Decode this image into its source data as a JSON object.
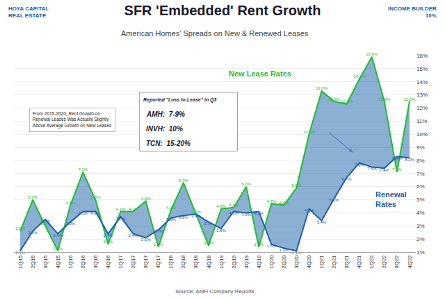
{
  "chart_data": {
    "type": "line",
    "title": "SFR 'Embedded' Rent Growth",
    "subtitle": "American Homes' Spreads on New & Renewed Leases",
    "annotations": [
      "HOYA CAPITAL\nREAL ESTATE",
      "INCOME BUILDER\n10%",
      "Source: AMH Company Reports",
      "From 2015-2020, Rent Growth on\nRenewal Leases Was Actually Slightly\nAbove Average Growth on New Leases",
      "Reported \"Loss to Lease\" in Q3",
      "AMH:  7-9%",
      "INVH:  10%",
      "TCN:  15-20%"
    ],
    "categories": [
      "1Q15",
      "2Q15",
      "3Q15",
      "4Q15",
      "1Q16",
      "2Q16",
      "3Q16",
      "4Q16",
      "1Q17",
      "2Q17",
      "3Q17",
      "4Q17",
      "1Q18",
      "2Q18",
      "3Q18",
      "4Q18",
      "1Q19",
      "2Q19",
      "3Q19",
      "4Q19",
      "1Q20",
      "2Q20",
      "3Q20",
      "4Q20",
      "1Q21",
      "2Q21",
      "3Q21",
      "4Q21",
      "1Q22",
      "2Q22",
      "3Q22",
      "4Q22"
    ],
    "series": [
      {
        "name": "New Lease Rates",
        "color": "#22bb33",
        "values": [
          2.6,
          5.0,
          3.0,
          1.1,
          4.6,
          7.1,
          5.0,
          1.6,
          4.1,
          4.1,
          4.9,
          1.4,
          4.2,
          6.3,
          3.9,
          1.5,
          4.3,
          4.4,
          6.0,
          1.4,
          4.7,
          4.6,
          5.9,
          10.0,
          13.3,
          12.5,
          12.3,
          14.2,
          15.9,
          12.5,
          7.1,
          12.5
        ],
        "value_labels": [
          "2.6%",
          "5.0%",
          "3.0%",
          "1.1%",
          "4.6%",
          "7.1%",
          "5.0%",
          "1.6%",
          "4.1%",
          "4.1%",
          "4.9%",
          "1.4%",
          "4.2%",
          "6.3%",
          "3.9%",
          "1.5%",
          "4.3%",
          "4.4%",
          "6.0%",
          "1.4%",
          "4.7%",
          "4.6%",
          "5.9%",
          "10.0%",
          "13.3%",
          "12.5%",
          "12.3%",
          "14.2%",
          "15.9%",
          "12.5%",
          "7.1%",
          "12.5%"
        ]
      },
      {
        "name": "Renewal\nRates",
        "color": "#1a5faa",
        "values": [
          1.1,
          2.6,
          3.5,
          2.4,
          3.3,
          4.1,
          4.1,
          2.4,
          3.7,
          2.4,
          2.1,
          2.7,
          3.6,
          3.8,
          3.9,
          3.3,
          2.8,
          4.1,
          4.0,
          4.1,
          1.6,
          1.3,
          1.1,
          4.3,
          3.4,
          5.1,
          6.7,
          7.8,
          7.5,
          7.4,
          8.3,
          8.2
        ],
        "value_labels": [
          "1.1%",
          "2.6%",
          "3.5%",
          "2.4%",
          "3.3%",
          "4.1%",
          "4.1%",
          "2.4%",
          "3.7%",
          "2.4%",
          "2.1%",
          "2.7%",
          "3.6%",
          "3.8%",
          "3.9%",
          "3.3%",
          "2.8%",
          "4.1%",
          "4.0%",
          "4.1%",
          "1.6%",
          "1.3%",
          "1.1%",
          "4.3%",
          "3.4%",
          "5.1%",
          "6.7%",
          "7.8%",
          "7.5%",
          "7.4%",
          "8.3%",
          "8.2%"
        ]
      }
    ],
    "data_labels": true,
    "ylim": [
      1,
      16
    ],
    "yticks": [
      {
        "value": 1,
        "label": "1%"
      },
      {
        "value": 2,
        "label": "2%"
      },
      {
        "value": 3,
        "label": "3%"
      },
      {
        "value": 4,
        "label": "4%"
      },
      {
        "value": 5,
        "label": "5%"
      },
      {
        "value": 6,
        "label": "6%"
      },
      {
        "value": 7,
        "label": "7%"
      },
      {
        "value": 8,
        "label": "8%"
      },
      {
        "value": 9,
        "label": "9%"
      },
      {
        "value": 10,
        "label": "10%"
      },
      {
        "value": 11,
        "label": "11%"
      },
      {
        "value": 12,
        "label": "12%"
      },
      {
        "value": 13,
        "label": "13%"
      },
      {
        "value": 14,
        "label": "14%"
      },
      {
        "value": 15,
        "label": "15%"
      },
      {
        "value": 16,
        "label": "16%"
      }
    ],
    "grid": true
  }
}
